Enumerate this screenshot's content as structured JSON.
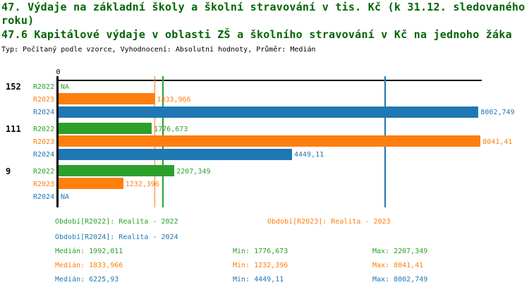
{
  "header": {
    "title_line1": "47. Výdaje na základní školy a školní stravování v tis. Kč (k 31.12. sledovaného roku)",
    "title_line2": "47.6 Kapitálové výdaje v oblasti ZŠ a školního stravování v Kč na jednoho žáka",
    "meta": "Typ: Počítaný podle vzorce, Vyhodnocení: Absolutní hodnoty, Průměr: Medián"
  },
  "colors": {
    "title": "#006400",
    "axis": "#000000",
    "series": {
      "R2022": "#2ca02c",
      "R2023": "#ff7f0e",
      "R2024": "#1f77b4"
    }
  },
  "chart_data": {
    "type": "bar",
    "orientation": "horizontal",
    "value_axis": {
      "zero_label": "0",
      "min": 0,
      "max": 8100,
      "grid": false
    },
    "average_method": "Medián",
    "missing_label": "NA",
    "groups": [
      {
        "label": "152",
        "bars": [
          {
            "series": "R2022",
            "value": null,
            "value_label": "NA"
          },
          {
            "series": "R2023",
            "value": 1833.966,
            "value_label": "1833,966"
          },
          {
            "series": "R2024",
            "value": 8002.749,
            "value_label": "8002,749"
          }
        ]
      },
      {
        "label": "111",
        "bars": [
          {
            "series": "R2022",
            "value": 1776.673,
            "value_label": "1776,673"
          },
          {
            "series": "R2023",
            "value": 8041.41,
            "value_label": "8041,41"
          },
          {
            "series": "R2024",
            "value": 4449.11,
            "value_label": "4449,11"
          }
        ]
      },
      {
        "label": "9",
        "bars": [
          {
            "series": "R2022",
            "value": 2207.349,
            "value_label": "2207,349"
          },
          {
            "series": "R2023",
            "value": 1232.396,
            "value_label": "1232,396"
          },
          {
            "series": "R2024",
            "value": null,
            "value_label": "NA"
          }
        ]
      }
    ],
    "median_lines": [
      {
        "series": "R2022",
        "value": 1992.011
      },
      {
        "series": "R2023",
        "value": 1833.966
      },
      {
        "series": "R2024",
        "value": 6225.93
      }
    ],
    "legend": [
      {
        "series": "R2022",
        "label": "Období[R2022]: Realita - 2022"
      },
      {
        "series": "R2023",
        "label": "Období[R2023]: Realita - 2023"
      },
      {
        "series": "R2024",
        "label": "Období[R2024]: Realita - 2024"
      }
    ],
    "stats": [
      {
        "series": "R2022",
        "median": 1992.011,
        "min": 1776.673,
        "max": 2207.349,
        "median_text": "Medián: 1992,011",
        "min_text": "Min: 1776,673",
        "max_text": "Max: 2207,349"
      },
      {
        "series": "R2023",
        "median": 1833.966,
        "min": 1232.396,
        "max": 8041.41,
        "median_text": "Medián: 1833,966",
        "min_text": "Min: 1232,396",
        "max_text": "Max: 8041,41"
      },
      {
        "series": "R2024",
        "median": 6225.93,
        "min": 4449.11,
        "max": 8002.749,
        "median_text": "Medián: 6225,93",
        "min_text": "Min: 4449,11",
        "max_text": "Max: 8002,749"
      }
    ]
  }
}
